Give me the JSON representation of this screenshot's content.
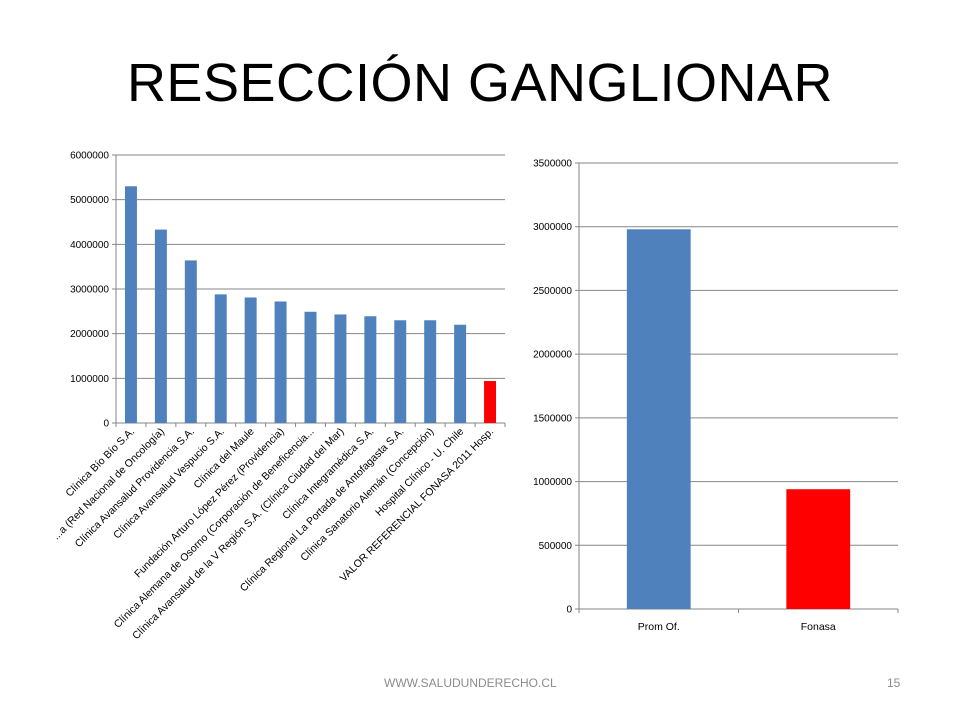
{
  "slide": {
    "title": "RESECCIÓN GANGLIONAR",
    "footer_url": "WWW.SALUDUNDERECHO.CL",
    "page_number": "15"
  },
  "colors": {
    "primary": "#4f81bd",
    "highlight": "#ff0000",
    "grid": "#868686"
  },
  "chart_data": [
    {
      "type": "bar",
      "categories": [
        "Clínica Bío Bío S.A.",
        "...a (Red Nacional de Oncología)",
        "Clínica Avansalud Providencia S.A.",
        "Clínica Avansalud Vespucio S.A.",
        "Clínica del Maule",
        "Fundación Arturo López Pérez (Providencia)",
        "Clínica Alemana de Osorno (Corporación de Beneficencia...",
        "Clínica Avansalud de la V Región S.A. (Clínica Ciudad del Mar)",
        "Clínica Integramédica S.A.",
        "Clínica Regional La Portada de Antofagasta S.A.",
        "Clínica Sanatorio Alemán (Concepción)",
        "Hospital Clínico - U. Chile",
        "VALOR REFERENCIAL FONASA 2011 Hosp."
      ],
      "values": [
        5300000,
        4330000,
        3640000,
        2880000,
        2810000,
        2720000,
        2490000,
        2430000,
        2390000,
        2300000,
        2300000,
        2200000,
        940000
      ],
      "highlight_index": 12,
      "ylim": [
        0,
        6000000
      ],
      "yticks": [
        "0",
        "1000000",
        "2000000",
        "3000000",
        "4000000",
        "5000000",
        "6000000"
      ],
      "grid": true,
      "title": "",
      "xlabel": "",
      "ylabel": ""
    },
    {
      "type": "bar",
      "categories": [
        "Prom Of.",
        "Fonasa"
      ],
      "values": [
        2980000,
        940000
      ],
      "highlight_index": 1,
      "ylim": [
        0,
        3500000
      ],
      "yticks": [
        "0",
        "500000",
        "1000000",
        "1500000",
        "2000000",
        "2500000",
        "3000000",
        "3500000"
      ],
      "grid": true,
      "title": "",
      "xlabel": "",
      "ylabel": ""
    }
  ]
}
